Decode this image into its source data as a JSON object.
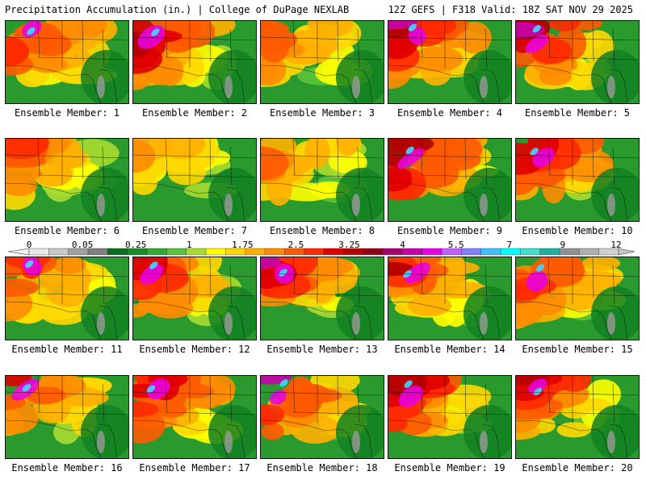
{
  "header": {
    "title_left": "Precipitation Accumulation (in.) | College of DuPage NEXLAB",
    "title_right": "12Z GEFS | F318 Valid: 18Z SAT NOV 29 2025"
  },
  "panels": [
    {
      "caption": "Ensemble Member: 1"
    },
    {
      "caption": "Ensemble Member: 2"
    },
    {
      "caption": "Ensemble Member: 3"
    },
    {
      "caption": "Ensemble Member: 4"
    },
    {
      "caption": "Ensemble Member: 5"
    },
    {
      "caption": "Ensemble Member: 6"
    },
    {
      "caption": "Ensemble Member: 7"
    },
    {
      "caption": "Ensemble Member: 8"
    },
    {
      "caption": "Ensemble Member: 9"
    },
    {
      "caption": "Ensemble Member: 10"
    },
    {
      "caption": "Ensemble Member: 11"
    },
    {
      "caption": "Ensemble Member: 12"
    },
    {
      "caption": "Ensemble Member: 13"
    },
    {
      "caption": "Ensemble Member: 14"
    },
    {
      "caption": "Ensemble Member: 15"
    },
    {
      "caption": "Ensemble Member: 16"
    },
    {
      "caption": "Ensemble Member: 17"
    },
    {
      "caption": "Ensemble Member: 18"
    },
    {
      "caption": "Ensemble Member: 19"
    },
    {
      "caption": "Ensemble Member: 20"
    }
  ],
  "colorbar": {
    "labels": [
      "0",
      "0.05",
      "0.25",
      "1",
      "1.75",
      "2.5",
      "3.25",
      "4",
      "5.5",
      "7",
      "9",
      "12"
    ],
    "colors": [
      "#e8e8e8",
      "#c8c8c8",
      "#a0a0a0",
      "#808080",
      "#0a6e1e",
      "#1a8a2a",
      "#34a834",
      "#5cc43c",
      "#a8dc30",
      "#ffff00",
      "#ffd800",
      "#ffb000",
      "#ff8c00",
      "#ff5a00",
      "#ff2a00",
      "#e00000",
      "#b40000",
      "#900018",
      "#a8006c",
      "#c800a8",
      "#e800e8",
      "#c060ff",
      "#8080ff",
      "#40c0ff",
      "#00ffff",
      "#40e0d0",
      "#20b0a0",
      "#909090",
      "#b0b0b0",
      "#d0d0d0"
    ]
  }
}
